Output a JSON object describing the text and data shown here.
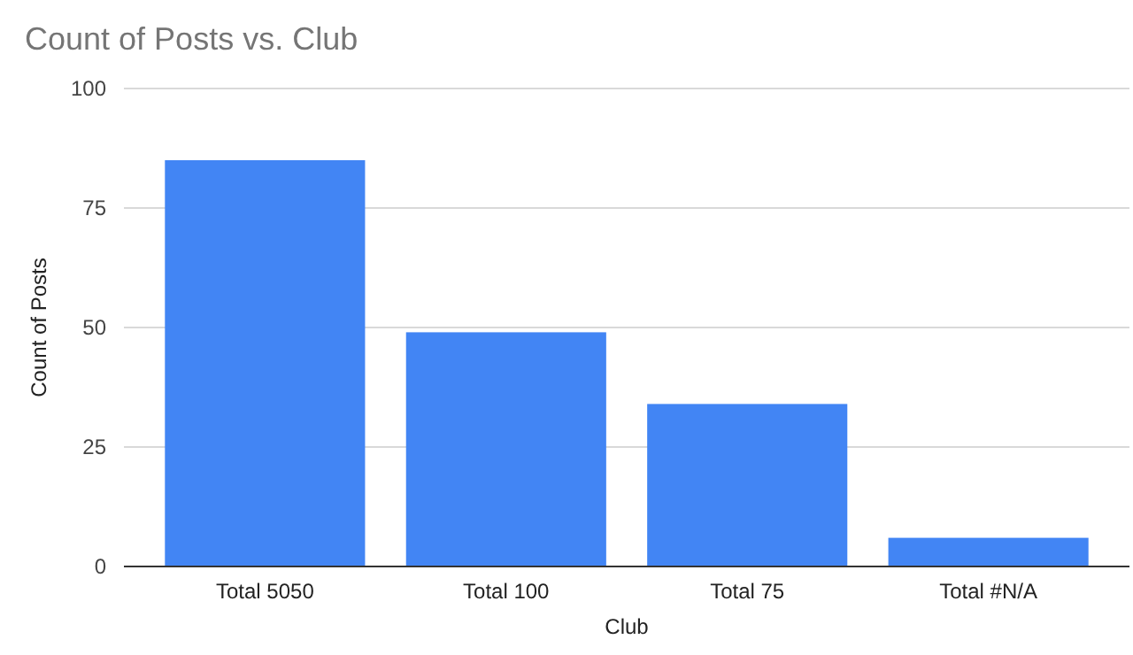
{
  "chart_data": {
    "type": "bar",
    "title": "Count of Posts vs. Club",
    "xlabel": "Club",
    "ylabel": "Count of Posts",
    "categories": [
      "Total 5050",
      "Total 100",
      "Total 75",
      "Total #N/A"
    ],
    "values": [
      85,
      49,
      34,
      6
    ],
    "color": "#4285f4",
    "ylim": [
      0,
      100
    ],
    "yticks": [
      0,
      25,
      50,
      75,
      100
    ],
    "grid": "y"
  }
}
